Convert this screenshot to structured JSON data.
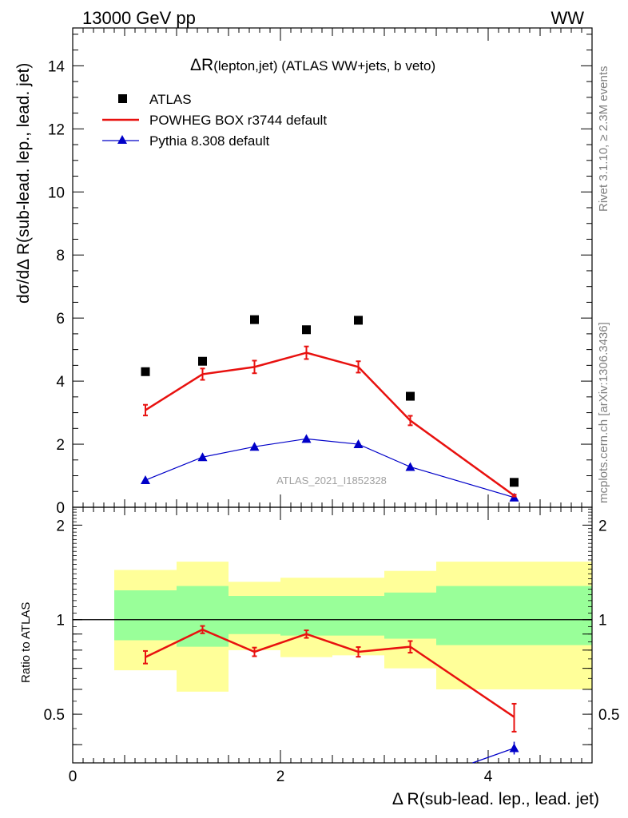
{
  "header": {
    "left": "13000 GeV pp",
    "right": "WW"
  },
  "side_labels": {
    "top": "Rivet 3.1.10, ≥ 2.3M events",
    "bottom": "mcplots.cern.ch [arXiv:1306.3436]"
  },
  "chart_data": {
    "type": "line",
    "title_main": "ΔR",
    "title_sub": "(lepton,jet)",
    "title_rest": " (ATLAS WW+jets, b veto)",
    "watermark": "ATLAS_2021_I1852328",
    "xlabel": "Δ R(sub-lead. lep., lead. jet)",
    "ylabel": "dσ/dΔ R(sub-lead. lep., lead. jet)",
    "ratio_ylabel": "Ratio to ATLAS",
    "xlim": [
      0,
      5
    ],
    "ylim": [
      0,
      15.2
    ],
    "ratio_ylim": [
      0.35,
      2.28
    ],
    "x_ticks": [
      0,
      2,
      4
    ],
    "y_ticks": [
      0,
      2,
      4,
      6,
      8,
      10,
      12,
      14
    ],
    "ratio_ticks": [
      0.5,
      1,
      2
    ],
    "ratio_tick_labels": [
      "0.5",
      "1",
      "2"
    ],
    "bins": [
      0.4,
      1.0,
      1.5,
      2.0,
      2.5,
      3.0,
      3.5,
      5.0
    ],
    "x": [
      0.7,
      1.25,
      1.75,
      2.25,
      2.75,
      3.25,
      4.25
    ],
    "legend": [
      {
        "label": "ATLAS",
        "color": "#000000",
        "marker": "square"
      },
      {
        "label": "POWHEG BOX r3744 default",
        "color": "#e8110f",
        "marker": "line"
      },
      {
        "label": "Pythia 8.308 default",
        "color": "#0000c8",
        "marker": "triangle"
      }
    ],
    "series": [
      {
        "name": "ATLAS",
        "values": [
          4.3,
          4.63,
          5.95,
          5.63,
          5.93,
          3.52,
          0.79
        ]
      },
      {
        "name": "POWHEG BOX r3744 default",
        "values": [
          3.08,
          4.22,
          4.45,
          4.9,
          4.45,
          2.75,
          0.37
        ],
        "errors": [
          0.17,
          0.18,
          0.2,
          0.2,
          0.18,
          0.15,
          0.03
        ]
      },
      {
        "name": "Pythia 8.308 default",
        "values": [
          0.86,
          1.59,
          1.92,
          2.17,
          2.0,
          1.28,
          0.31
        ]
      }
    ],
    "ratio": {
      "reference": 1,
      "powheg": [
        0.76,
        0.93,
        0.79,
        0.9,
        0.79,
        0.82,
        0.49
      ],
      "powheg_errors": [
        0.035,
        0.025,
        0.025,
        0.025,
        0.028,
        0.035,
        0.05
      ],
      "pythia_last": 0.39,
      "band_green": [
        [
          0.86,
          1.24
        ],
        [
          0.82,
          1.28
        ],
        [
          0.9,
          1.19
        ],
        [
          0.89,
          1.19
        ],
        [
          0.89,
          1.19
        ],
        [
          0.87,
          1.22
        ],
        [
          0.83,
          1.28
        ]
      ],
      "band_yellow": [
        [
          0.69,
          1.44
        ],
        [
          0.59,
          1.53
        ],
        [
          0.8,
          1.32
        ],
        [
          0.76,
          1.36
        ],
        [
          0.77,
          1.36
        ],
        [
          0.7,
          1.43
        ],
        [
          0.6,
          1.53
        ]
      ]
    }
  }
}
